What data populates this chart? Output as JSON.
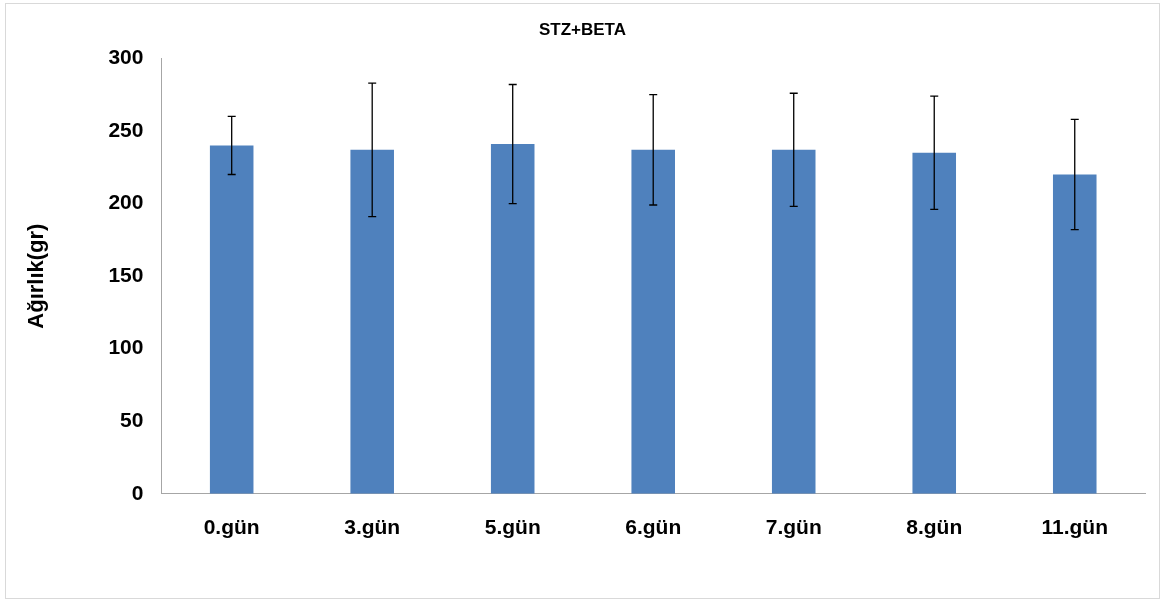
{
  "chart_data": {
    "type": "bar",
    "title": "STZ+BETA",
    "ylabel": "Ağırlık(gr)",
    "categories": [
      "0.gün",
      "3.gün",
      "5.gün",
      "6.gün",
      "7.gün",
      "8.gün",
      "11.gün"
    ],
    "values": [
      240,
      237,
      241,
      237,
      237,
      235,
      220
    ],
    "errors": [
      20,
      46,
      41,
      38,
      39,
      39,
      38
    ],
    "color": "#4f81bd",
    "ylim": [
      0,
      300
    ],
    "yticks": [
      0,
      50,
      100,
      150,
      200,
      250,
      300
    ],
    "grid": false,
    "legend": false
  }
}
